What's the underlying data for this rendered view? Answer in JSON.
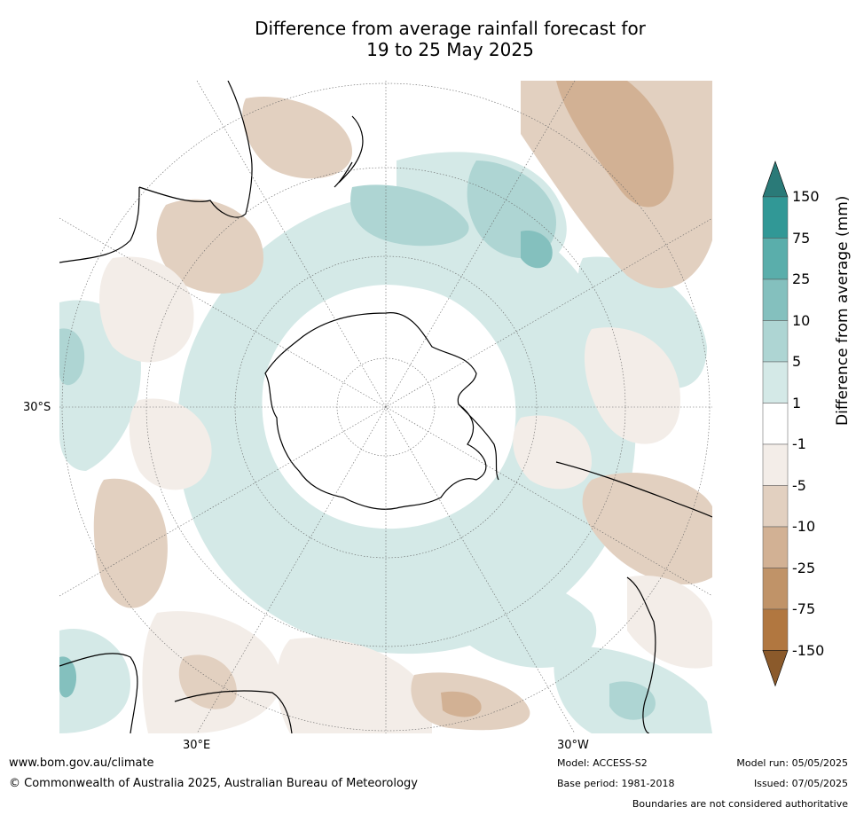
{
  "title": {
    "line1": "Difference from average rainfall forecast for",
    "line2": "19 to 25 May 2025"
  },
  "map": {
    "projection": "south-polar-stereographic",
    "lat_label_left": "30°S",
    "lon_labels": {
      "left": "30°E",
      "right": "30°W"
    },
    "features": [
      "Antarctica",
      "South America",
      "Africa",
      "Australia",
      "New Zealand"
    ],
    "colors": {
      "ocean_neutral": "#ffffff",
      "wet_1_5": "#d4e9e7",
      "wet_5_10": "#aed5d3",
      "wet_10_25": "#84c0be",
      "dry_1_5": "#f3ede8",
      "dry_5_10": "#e2d0c0",
      "dry_10_25": "#d2b194"
    }
  },
  "colorbar": {
    "title": "Difference from average (mm)",
    "ticks": [
      "150",
      "75",
      "25",
      "10",
      "5",
      "1",
      "-1",
      "-5",
      "-10",
      "-25",
      "-75",
      "-150"
    ],
    "colors": [
      "#2a7a78",
      "#319896",
      "#5aaeab",
      "#84c0be",
      "#aed5d3",
      "#d4e9e7",
      "#ffffff",
      "#f3ede8",
      "#e2d0c0",
      "#d2b194",
      "#c09368",
      "#b17740",
      "#8b5a2b"
    ]
  },
  "footer": {
    "website": "www.bom.gov.au/climate",
    "copyright": "© Commonwealth of Australia 2025, Australian Bureau of Meteorology",
    "model": "Model: ACCESS-S2",
    "base_period": "Base period: 1981-2018",
    "model_run": "Model run: 05/05/2025",
    "issued": "Issued: 07/05/2025",
    "disclaimer": "Boundaries are not considered authoritative"
  }
}
